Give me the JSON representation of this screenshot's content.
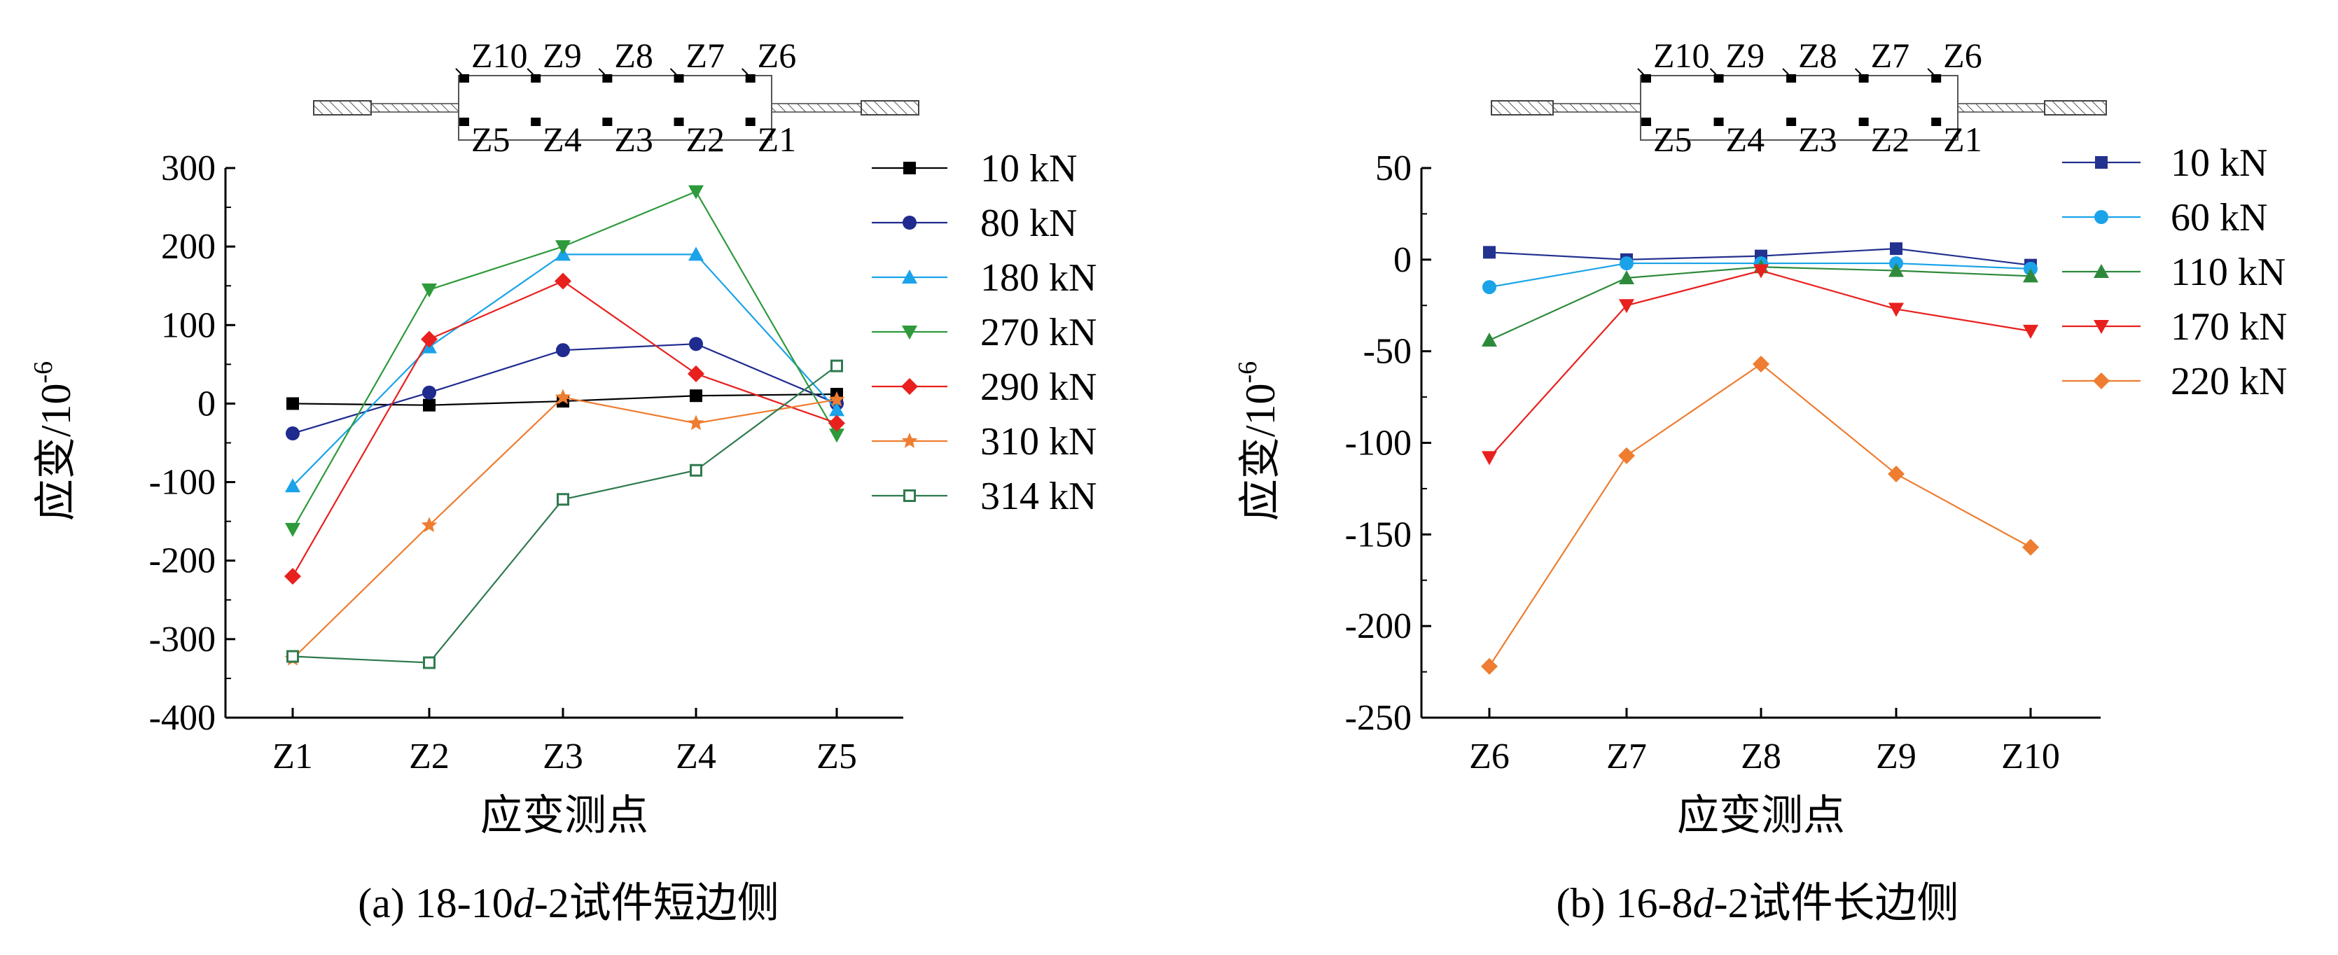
{
  "chart_data": [
    {
      "type": "line",
      "caption": "(a) 18-10d-2试件短边侧",
      "caption_parts": {
        "pre": "(a) 18-10",
        "italic": "d",
        "post": "-2试件短边侧"
      },
      "xlabel": "应变测点",
      "ylabel": "应变/10",
      "ylabel_exp": "-6",
      "categories": [
        "Z1",
        "Z2",
        "Z3",
        "Z4",
        "Z5"
      ],
      "ylim": [
        -400,
        300
      ],
      "yticks": [
        "300",
        "200",
        "100",
        "0",
        "-100",
        "-200",
        "-300",
        "-400"
      ],
      "legend_position": "right",
      "series": [
        {
          "name": "10 kN",
          "color": "#000000",
          "marker": "square",
          "values": [
            0,
            -2,
            3,
            10,
            12
          ]
        },
        {
          "name": "80 kN",
          "color": "#1f2b8f",
          "marker": "circle",
          "values": [
            -38,
            14,
            68,
            76,
            0
          ]
        },
        {
          "name": "180 kN",
          "color": "#1aa3e8",
          "marker": "triangle-up",
          "values": [
            -105,
            72,
            190,
            190,
            -8
          ]
        },
        {
          "name": "270 kN",
          "color": "#2e9a3b",
          "marker": "triangle-down",
          "values": [
            -160,
            145,
            200,
            270,
            -40
          ]
        },
        {
          "name": "290 kN",
          "color": "#e8201e",
          "marker": "diamond",
          "values": [
            -220,
            82,
            156,
            38,
            -25
          ]
        },
        {
          "name": "310 kN",
          "color": "#ee7d31",
          "marker": "star",
          "values": [
            -325,
            -155,
            8,
            -25,
            5
          ]
        },
        {
          "name": "314 kN",
          "color": "#2f7a4f",
          "marker": "open-square",
          "values": [
            -322,
            -330,
            -122,
            -85,
            48
          ]
        }
      ],
      "diagram_labels": {
        "top": [
          "Z10",
          "Z9",
          "Z8",
          "Z7",
          "Z6"
        ],
        "bottom": [
          "Z5",
          "Z4",
          "Z3",
          "Z2",
          "Z1"
        ]
      }
    },
    {
      "type": "line",
      "caption": "(b) 16-8d-2试件长边侧",
      "caption_parts": {
        "pre": "(b) 16-8",
        "italic": "d",
        "post": "-2试件长边侧"
      },
      "xlabel": "应变测点",
      "ylabel": "应变/10",
      "ylabel_exp": "-6",
      "categories": [
        "Z6",
        "Z7",
        "Z8",
        "Z9",
        "Z10"
      ],
      "ylim": [
        -250,
        50
      ],
      "yticks": [
        "50",
        "0",
        "-50",
        "-100",
        "-150",
        "-200",
        "-250"
      ],
      "legend_position": "right",
      "series": [
        {
          "name": "10 kN",
          "color": "#23318f",
          "marker": "square",
          "values": [
            4,
            0,
            2,
            6,
            -3
          ]
        },
        {
          "name": "60 kN",
          "color": "#1aa3e8",
          "marker": "circle",
          "values": [
            -15,
            -2,
            -2,
            -2,
            -5
          ]
        },
        {
          "name": "110 kN",
          "color": "#2e8a3b",
          "marker": "triangle-up",
          "values": [
            -44,
            -10,
            -4,
            -6,
            -9
          ]
        },
        {
          "name": "170 kN",
          "color": "#e8201e",
          "marker": "triangle-down",
          "values": [
            -108,
            -25,
            -6,
            -27,
            -39
          ]
        },
        {
          "name": "220 kN",
          "color": "#ee7d31",
          "marker": "diamond",
          "values": [
            -222,
            -107,
            -57,
            -117,
            -157
          ]
        }
      ],
      "diagram_labels": {
        "top": [
          "Z10",
          "Z9",
          "Z8",
          "Z7",
          "Z6"
        ],
        "bottom": [
          "Z5",
          "Z4",
          "Z3",
          "Z2",
          "Z1"
        ]
      }
    }
  ]
}
